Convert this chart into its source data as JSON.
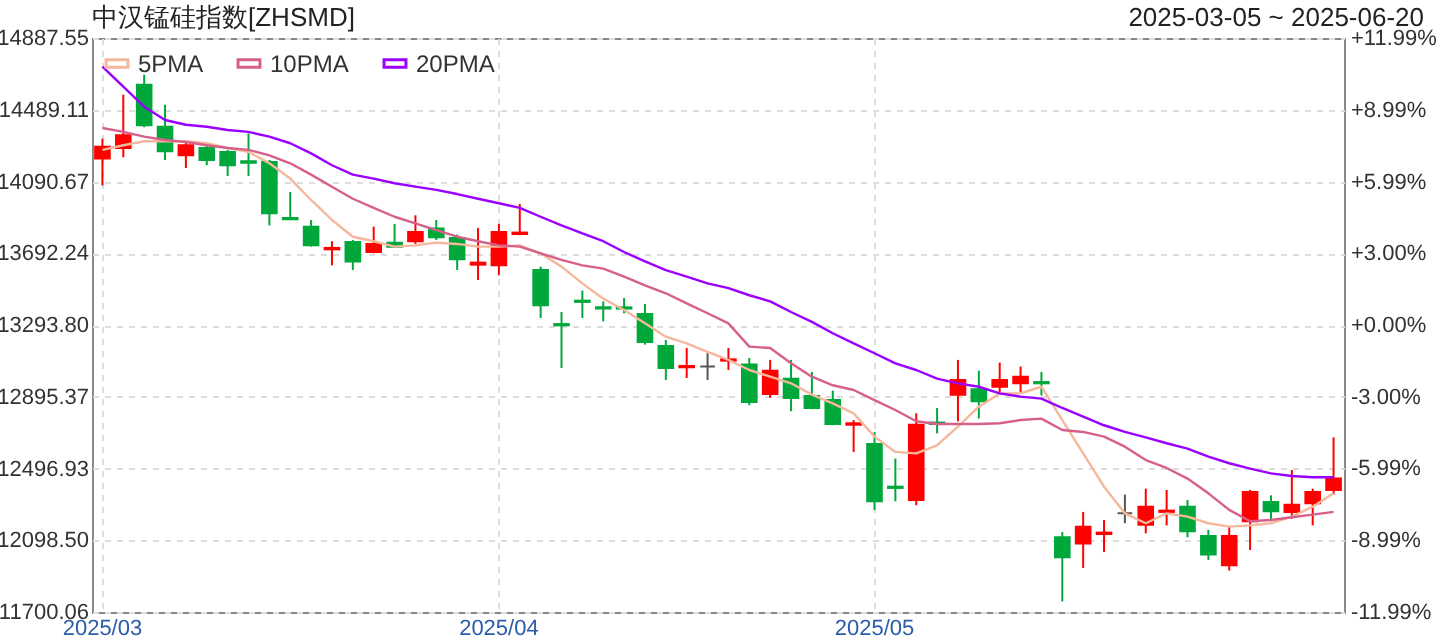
{
  "chart_data": {
    "type": "candlestick",
    "title": "中汉锰硅指数[ZHSMD]",
    "subtitle": "2025-03-05 ~ 2025-06-20",
    "categories": [
      "2025/03",
      null,
      null,
      null,
      null,
      null,
      null,
      null,
      null,
      null,
      null,
      null,
      null,
      null,
      null,
      null,
      null,
      null,
      null,
      "2025/04",
      null,
      null,
      null,
      null,
      null,
      null,
      null,
      null,
      null,
      null,
      null,
      null,
      null,
      null,
      null,
      null,
      null,
      "2025/05",
      null,
      null,
      null,
      null,
      null,
      null,
      null,
      null,
      null,
      null,
      null,
      null,
      null,
      null,
      null,
      null,
      null,
      null,
      null,
      null,
      null,
      null
    ],
    "ohlc": [
      [
        14218,
        14329,
        14069,
        14284
      ],
      [
        14277,
        14573,
        14225,
        14347
      ],
      [
        14628,
        14684,
        14392,
        14403
      ],
      [
        14395,
        14517,
        14210,
        14258
      ],
      [
        14236,
        14321,
        14166,
        14292
      ],
      [
        14277,
        14303,
        14181,
        14210
      ],
      [
        14255,
        14266,
        14121,
        14181
      ],
      [
        14203,
        14358,
        14121,
        14195
      ],
      [
        14199,
        14210,
        13847,
        13914
      ],
      [
        13888,
        14032,
        13877,
        13881
      ],
      [
        13840,
        13877,
        13729,
        13736
      ],
      [
        13714,
        13759,
        13625,
        13722
      ],
      [
        13755,
        13766,
        13599,
        13647
      ],
      [
        13699,
        13840,
        13692,
        13744
      ],
      [
        13751,
        13855,
        13722,
        13729
      ],
      [
        13759,
        13903,
        13744,
        13810
      ],
      [
        13829,
        13877,
        13766,
        13781
      ],
      [
        13777,
        13796,
        13599,
        13659
      ],
      [
        13629,
        13833,
        13544,
        13640
      ],
      [
        13625,
        13855,
        13570,
        13810
      ],
      [
        13799,
        13966,
        13792,
        13807
      ],
      [
        13599,
        13618,
        13333,
        13403
      ],
      [
        13299,
        13366,
        13055,
        13292
      ],
      [
        13429,
        13485,
        13333,
        13422
      ],
      [
        13392,
        13425,
        13314,
        13385
      ],
      [
        13392,
        13444,
        13359,
        13385
      ],
      [
        13355,
        13411,
        13185,
        13200
      ],
      [
        13177,
        13211,
        12989,
        13055
      ],
      [
        13059,
        13166,
        13000,
        13066
      ],
      [
        13063,
        13137,
        12989,
        13063
      ],
      [
        13096,
        13166,
        13044,
        13103
      ],
      [
        13074,
        13111,
        12848,
        12866
      ],
      [
        12911,
        13100,
        12889,
        13040
      ],
      [
        12996,
        13100,
        12815,
        12889
      ],
      [
        12900,
        13033,
        12826,
        12833
      ],
      [
        12877,
        12929,
        12737,
        12744
      ],
      [
        12740,
        12766,
        12589,
        12748
      ],
      [
        12633,
        12700,
        12267,
        12315
      ],
      [
        12396,
        12552,
        12315,
        12389
      ],
      [
        12322,
        12803,
        12293,
        12740
      ],
      [
        12752,
        12833,
        12692,
        12744
      ],
      [
        12907,
        13100,
        12759,
        12989
      ],
      [
        12937,
        13040,
        12774,
        12870
      ],
      [
        12951,
        13085,
        12914,
        12989
      ],
      [
        12970,
        13063,
        12922,
        13007
      ],
      [
        12977,
        13033,
        12903,
        12970
      ],
      [
        12115,
        12144,
        11759,
        12004
      ],
      [
        12081,
        12256,
        11945,
        12174
      ],
      [
        12133,
        12211,
        12033,
        12141
      ],
      [
        12248,
        12352,
        12193,
        12248
      ],
      [
        12185,
        12385,
        12137,
        12285
      ],
      [
        12256,
        12378,
        12181,
        12263
      ],
      [
        12285,
        12322,
        12115,
        12148
      ],
      [
        12122,
        12156,
        11989,
        12019
      ],
      [
        11959,
        12174,
        11930,
        12122
      ],
      [
        12204,
        12378,
        12044,
        12367
      ],
      [
        12311,
        12348,
        12204,
        12259
      ],
      [
        12256,
        12489,
        12218,
        12296
      ],
      [
        12304,
        12385,
        12181,
        12367
      ],
      [
        12378,
        12670,
        12352,
        12441
      ]
    ],
    "colors": [
      "#ff0000",
      "#ff0000",
      "#00a83c",
      "#00a83c",
      "#ff0000",
      "#00a83c",
      "#00a83c",
      "#00a83c",
      "#00a83c",
      "#00a83c",
      "#00a83c",
      "#ff0000",
      "#00a83c",
      "#ff0000",
      "#00a83c",
      "#ff0000",
      "#00a83c",
      "#00a83c",
      "#ff0000",
      "#ff0000",
      "#ff0000",
      "#00a83c",
      "#00a83c",
      "#00a83c",
      "#00a83c",
      "#00a83c",
      "#00a83c",
      "#00a83c",
      "#ff0000",
      "#555555",
      "#ff0000",
      "#00a83c",
      "#ff0000",
      "#00a83c",
      "#00a83c",
      "#00a83c",
      "#ff0000",
      "#00a83c",
      "#00a83c",
      "#ff0000",
      "#00a83c",
      "#ff0000",
      "#00a83c",
      "#ff0000",
      "#ff0000",
      "#00a83c",
      "#00a83c",
      "#ff0000",
      "#ff0000",
      "#555555",
      "#ff0000",
      "#ff0000",
      "#00a83c",
      "#00a83c",
      "#ff0000",
      "#ff0000",
      "#00a83c",
      "#ff0000",
      "#ff0000",
      "#ff0000"
    ],
    "series": [
      {
        "name": "5PMA",
        "type": "line",
        "color": "#f5b89c",
        "values": [
          14266,
          14292,
          14314,
          14314,
          14314,
          14303,
          14277,
          14255,
          14192,
          14107,
          13988,
          13877,
          13784,
          13759,
          13729,
          13736,
          13751,
          13744,
          13729,
          13729,
          13736,
          13692,
          13618,
          13525,
          13440,
          13377,
          13303,
          13229,
          13192,
          13144,
          13100,
          13044,
          13007,
          12970,
          12907,
          12859,
          12803,
          12674,
          12589,
          12581,
          12626,
          12729,
          12840,
          12914,
          12914,
          12951,
          12766,
          12581,
          12396,
          12248,
          12193,
          12248,
          12230,
          12193,
          12174,
          12181,
          12193,
          12230,
          12285,
          12359
        ]
      },
      {
        "name": "10PMA",
        "type": "line",
        "color": "#d6608a",
        "values": [
          14388,
          14366,
          14340,
          14321,
          14310,
          14292,
          14277,
          14266,
          14236,
          14192,
          14129,
          14062,
          13995,
          13944,
          13895,
          13858,
          13821,
          13784,
          13759,
          13736,
          13729,
          13692,
          13655,
          13625,
          13607,
          13562,
          13514,
          13470,
          13414,
          13359,
          13303,
          13174,
          13166,
          13081,
          13007,
          12959,
          12933,
          12877,
          12822,
          12759,
          12744,
          12744,
          12744,
          12748,
          12766,
          12774,
          12711,
          12700,
          12674,
          12618,
          12544,
          12500,
          12441,
          12359,
          12267,
          12204,
          12211,
          12226,
          12241,
          12256
        ]
      },
      {
        "name": "20PMA",
        "type": "line",
        "color": "#9b00ff",
        "values": [
          14728,
          14617,
          14506,
          14432,
          14406,
          14395,
          14377,
          14366,
          14340,
          14303,
          14247,
          14181,
          14129,
          14107,
          14081,
          14062,
          14044,
          14021,
          13995,
          13970,
          13944,
          13895,
          13847,
          13803,
          13759,
          13699,
          13647,
          13599,
          13562,
          13525,
          13499,
          13459,
          13425,
          13366,
          13311,
          13248,
          13192,
          13137,
          13081,
          13044,
          12996,
          12970,
          12951,
          12914,
          12896,
          12885,
          12833,
          12785,
          12737,
          12700,
          12670,
          12637,
          12607,
          12563,
          12526,
          12496,
          12470,
          12455,
          12448,
          12448
        ]
      }
    ],
    "ylim": [
      11700.06,
      14887.55
    ],
    "yticks": [
      11700.06,
      {
        "value": 12098.5,
        "label": "12098.50"
      },
      12496.93,
      12895.37,
      {
        "value": 13293.8,
        "label": "13293.80"
      },
      13692.24,
      14090.67,
      14489.11,
      14887.55
    ],
    "y2lim": [
      -11.99,
      11.99
    ],
    "y2ticks": [
      {
        "value": -11.99,
        "label": "-11.99%"
      },
      {
        "value": -8.99,
        "label": "-8.99%"
      },
      {
        "value": -5.99,
        "label": "-5.99%"
      },
      {
        "value": -3.0,
        "label": "-3.00%"
      },
      {
        "value": 0,
        "label": "+0.00%"
      },
      {
        "value": 3.0,
        "label": "+3.00%"
      },
      {
        "value": 5.99,
        "label": "+5.99%"
      },
      {
        "value": 8.99,
        "label": "+8.99%"
      },
      {
        "value": 11.99,
        "label": "+11.99%"
      }
    ],
    "grid": true,
    "legend": "top left",
    "marker": "none",
    "line_style": "solid"
  }
}
